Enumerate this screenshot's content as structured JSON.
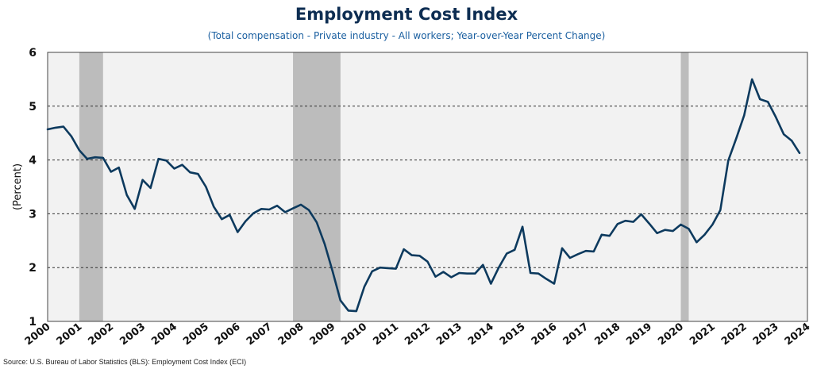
{
  "chart_data": {
    "type": "line",
    "title": "Employment Cost Index",
    "subtitle": "(Total compensation - Private industry - All workers; Year-over-Year Percent Change)",
    "xlabel": "",
    "ylabel": "(Percent)",
    "source": "Source: U.S. Bureau of Labor Statistics (BLS): Employment Cost Index (ECI)",
    "ylim": [
      1,
      6
    ],
    "yticks": [
      "1",
      "2",
      "3",
      "4",
      "5",
      "6"
    ],
    "xlim": [
      2000,
      2024
    ],
    "xticks": [
      "2000",
      "2001",
      "2002",
      "2003",
      "2004",
      "2005",
      "2006",
      "2007",
      "2008",
      "2009",
      "2010",
      "2011",
      "2012",
      "2013",
      "2014",
      "2015",
      "2016",
      "2017",
      "2018",
      "2019",
      "2020",
      "2021",
      "2022",
      "2023",
      "2024"
    ],
    "grid": "horizontal-dashed",
    "recessions": [
      {
        "start": 2001.0,
        "end": 2001.75
      },
      {
        "start": 2007.75,
        "end": 2009.25
      },
      {
        "start": 2020.0,
        "end": 2020.25
      }
    ],
    "series": [
      {
        "name": "Employment Cost Index YoY % change",
        "color": "#0d3a5e",
        "x": [
          2000.0,
          2000.25,
          2000.5,
          2000.75,
          2001.0,
          2001.25,
          2001.5,
          2001.75,
          2002.0,
          2002.25,
          2002.5,
          2002.75,
          2003.0,
          2003.25,
          2003.5,
          2003.75,
          2004.0,
          2004.25,
          2004.5,
          2004.75,
          2005.0,
          2005.25,
          2005.5,
          2005.75,
          2006.0,
          2006.25,
          2006.5,
          2006.75,
          2007.0,
          2007.25,
          2007.5,
          2007.75,
          2008.0,
          2008.25,
          2008.5,
          2008.75,
          2009.0,
          2009.25,
          2009.5,
          2009.75,
          2010.0,
          2010.25,
          2010.5,
          2010.75,
          2011.0,
          2011.25,
          2011.5,
          2011.75,
          2012.0,
          2012.25,
          2012.5,
          2012.75,
          2013.0,
          2013.25,
          2013.5,
          2013.75,
          2014.0,
          2014.25,
          2014.5,
          2014.75,
          2015.0,
          2015.25,
          2015.5,
          2015.75,
          2016.0,
          2016.25,
          2016.5,
          2016.75,
          2017.0,
          2017.25,
          2017.5,
          2017.75,
          2018.0,
          2018.25,
          2018.5,
          2018.75,
          2019.0,
          2019.25,
          2019.5,
          2019.75,
          2020.0,
          2020.25,
          2020.5,
          2020.75,
          2021.0,
          2021.25,
          2021.5,
          2021.75,
          2022.0,
          2022.25,
          2022.5,
          2022.75,
          2023.0,
          2023.25,
          2023.5,
          2023.75
        ],
        "values": [
          4.57,
          4.6,
          4.62,
          4.44,
          4.18,
          4.02,
          4.05,
          4.04,
          3.78,
          3.86,
          3.35,
          3.09,
          3.63,
          3.48,
          4.02,
          3.99,
          3.84,
          3.91,
          3.77,
          3.74,
          3.5,
          3.13,
          2.9,
          2.98,
          2.66,
          2.86,
          3.01,
          3.09,
          3.08,
          3.15,
          3.03,
          3.1,
          3.17,
          3.07,
          2.84,
          2.44,
          1.93,
          1.39,
          1.2,
          1.19,
          1.64,
          1.93,
          2.0,
          1.99,
          1.98,
          2.34,
          2.23,
          2.22,
          2.11,
          1.83,
          1.92,
          1.82,
          1.9,
          1.89,
          1.89,
          2.05,
          1.7,
          2.0,
          2.26,
          2.33,
          2.76,
          1.9,
          1.89,
          1.79,
          1.7,
          2.36,
          2.18,
          2.25,
          2.31,
          2.3,
          2.61,
          2.59,
          2.81,
          2.87,
          2.85,
          2.99,
          2.82,
          2.64,
          2.7,
          2.68,
          2.8,
          2.72,
          2.47,
          2.61,
          2.8,
          3.07,
          3.99,
          4.4,
          4.83,
          5.5,
          5.13,
          5.08,
          4.8,
          4.48,
          4.36,
          4.13
        ]
      }
    ]
  }
}
